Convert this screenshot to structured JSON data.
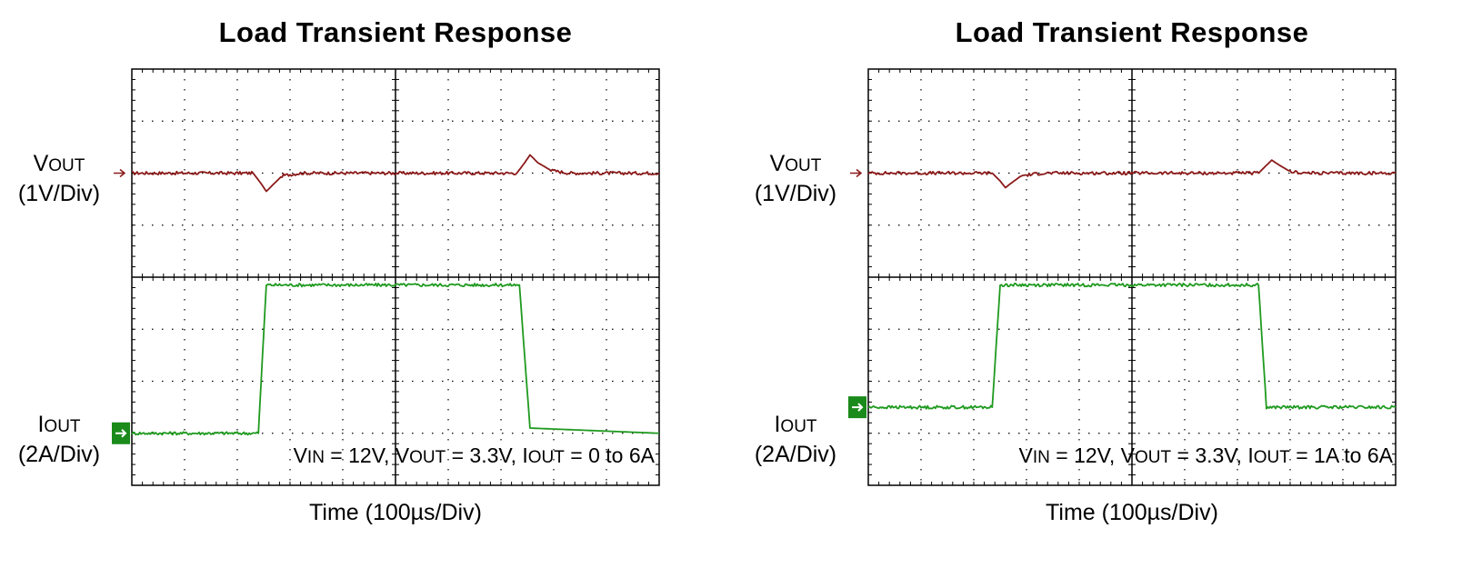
{
  "colors": {
    "vout": "#8b1a1a",
    "iout": "#1f9a1f",
    "marker": "#1a8a1a",
    "grid": "#000000"
  },
  "chart_data": [
    {
      "type": "line",
      "title": "Load Transient Response",
      "xlabel": "Time (100µs/Div)",
      "time_per_div_us": 100,
      "x_range_div": [
        0,
        10
      ],
      "y_range_div": [
        0,
        8
      ],
      "grid": true,
      "channels": {
        "vout": {
          "main": "V",
          "sub": "OUT",
          "scale": "(1V/Div)"
        },
        "iout": {
          "main": "I",
          "sub": "OUT",
          "scale": "(2A/Div)"
        }
      },
      "conditions": [
        {
          "main": "V",
          "sub": "IN",
          "rest": " = 12V, "
        },
        {
          "main": "V",
          "sub": "OUT",
          "rest": " = 3.3V, "
        },
        {
          "main": "I",
          "sub": "OUT",
          "rest": " = 0 to 6A"
        }
      ],
      "series": [
        {
          "key": "vout",
          "x": [
            0,
            2.3,
            2.45,
            2.55,
            2.65,
            2.85,
            3.2,
            7.3,
            7.45,
            7.55,
            7.7,
            7.95,
            8.3,
            10
          ],
          "y": [
            6.0,
            6.0,
            5.8,
            5.65,
            5.75,
            5.95,
            6.0,
            6.0,
            6.2,
            6.35,
            6.2,
            6.05,
            6.0,
            6.0
          ]
        },
        {
          "key": "iout",
          "x": [
            0,
            2.4,
            2.55,
            7.35,
            7.55,
            10
          ],
          "y": [
            1.0,
            1.0,
            3.85,
            3.85,
            1.1,
            1.0
          ]
        }
      ]
    },
    {
      "type": "line",
      "title": "Load Transient Response",
      "xlabel": "Time (100µs/Div)",
      "time_per_div_us": 100,
      "x_range_div": [
        0,
        10
      ],
      "y_range_div": [
        0,
        8
      ],
      "grid": true,
      "channels": {
        "vout": {
          "main": "V",
          "sub": "OUT",
          "scale": "(1V/Div)"
        },
        "iout": {
          "main": "I",
          "sub": "OUT",
          "scale": "(2A/Div)"
        }
      },
      "conditions": [
        {
          "main": "V",
          "sub": "IN",
          "rest": " = 12V, "
        },
        {
          "main": "V",
          "sub": "OUT",
          "rest": " = 3.3V, "
        },
        {
          "main": "I",
          "sub": "OUT",
          "rest": " = 1A to 6A"
        }
      ],
      "series": [
        {
          "key": "vout",
          "x": [
            0,
            2.35,
            2.5,
            2.6,
            2.7,
            2.9,
            3.3,
            7.4,
            7.55,
            7.65,
            7.8,
            8.0,
            8.3,
            10
          ],
          "y": [
            6.0,
            6.0,
            5.85,
            5.72,
            5.8,
            5.95,
            6.0,
            6.0,
            6.15,
            6.25,
            6.15,
            6.03,
            6.0,
            6.0
          ]
        },
        {
          "key": "iout",
          "x": [
            0,
            2.35,
            2.5,
            7.4,
            7.55,
            10
          ],
          "y": [
            1.5,
            1.5,
            3.85,
            3.85,
            1.5,
            1.5
          ]
        }
      ]
    }
  ]
}
